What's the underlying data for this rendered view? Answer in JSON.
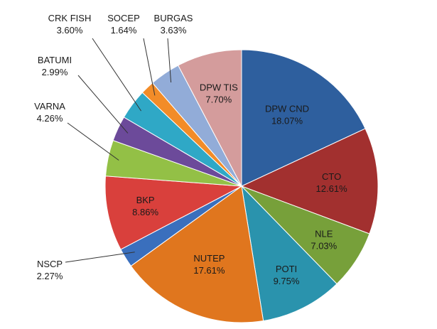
{
  "chart_data": {
    "type": "pie",
    "title": "",
    "start_angle_deg": 0,
    "direction": "clockwise",
    "legend": "none",
    "slices": [
      {
        "label": "DPW CND",
        "value": 18.07,
        "value_label": "18.07%",
        "color": "#2e5f9e"
      },
      {
        "label": "CTO",
        "value": 12.61,
        "value_label": "12.61%",
        "color": "#a2302f"
      },
      {
        "label": "NLE",
        "value": 7.03,
        "value_label": "7.03%",
        "color": "#77a03a"
      },
      {
        "label": "POTI",
        "value": 9.75,
        "value_label": "9.75%",
        "color": "#2a93ad"
      },
      {
        "label": "NUTEP",
        "value": 17.61,
        "value_label": "17.61%",
        "color": "#e0761e"
      },
      {
        "label": "NSCP",
        "value": 2.27,
        "value_label": "2.27%",
        "color": "#3a6fbd"
      },
      {
        "label": "BKP",
        "value": 8.86,
        "value_label": "8.86%",
        "color": "#d9403c"
      },
      {
        "label": "VARNA",
        "value": 4.26,
        "value_label": "4.26%",
        "color": "#93c046"
      },
      {
        "label": "BATUMI",
        "value": 2.99,
        "value_label": "2.99%",
        "color": "#6c4a9a"
      },
      {
        "label": "CRK FISH",
        "value": 3.6,
        "value_label": "3.60%",
        "color": "#2fa8c6"
      },
      {
        "label": "SOCEP",
        "value": 1.64,
        "value_label": "1.64%",
        "color": "#f28c28"
      },
      {
        "label": "BURGAS",
        "value": 3.63,
        "value_label": "3.63%",
        "color": "#92acd8"
      },
      {
        "label": "DPW TIS",
        "value": 7.7,
        "value_label": "7.70%",
        "color": "#d49c9c"
      }
    ]
  }
}
